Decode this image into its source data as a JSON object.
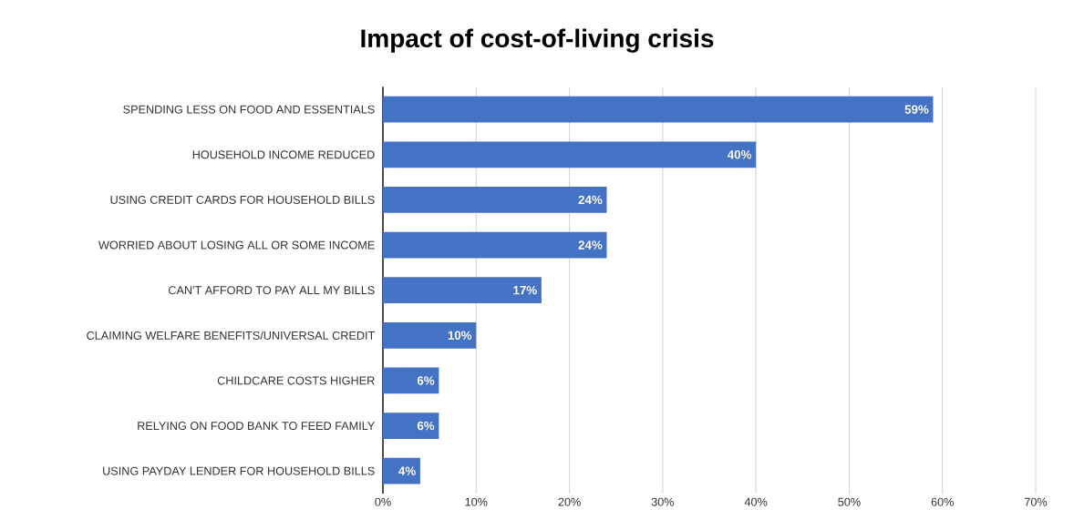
{
  "chart_data": {
    "type": "bar",
    "orientation": "horizontal",
    "title": "Impact of cost-of-living crisis",
    "categories": [
      "SPENDING LESS ON FOOD AND ESSENTIALS",
      "HOUSEHOLD INCOME REDUCED",
      "USING CREDIT CARDS FOR HOUSEHOLD BILLS",
      "WORRIED ABOUT LOSING ALL OR SOME INCOME",
      "CAN'T AFFORD TO PAY ALL MY BILLS",
      "CLAIMING WELFARE BENEFITS/UNIVERSAL CREDIT",
      "CHILDCARE COSTS HIGHER",
      "RELYING ON FOOD BANK TO FEED FAMILY",
      "USING PAYDAY LENDER FOR HOUSEHOLD BILLS"
    ],
    "values": [
      59,
      40,
      24,
      24,
      17,
      10,
      6,
      6,
      4
    ],
    "value_labels": [
      "59%",
      "40%",
      "24%",
      "24%",
      "17%",
      "10%",
      "6%",
      "6%",
      "4%"
    ],
    "color": "#4472c4",
    "xlim": [
      0,
      70
    ],
    "xticks": [
      {
        "value": 0,
        "label": "0%"
      },
      {
        "value": 10,
        "label": "10%"
      },
      {
        "value": 20,
        "label": "20%"
      },
      {
        "value": 30,
        "label": "30%"
      },
      {
        "value": 40,
        "label": "40%"
      },
      {
        "value": 50,
        "label": "50%"
      },
      {
        "value": 60,
        "label": "60%"
      },
      {
        "value": 70,
        "label": "70%"
      }
    ],
    "grid": "x"
  }
}
